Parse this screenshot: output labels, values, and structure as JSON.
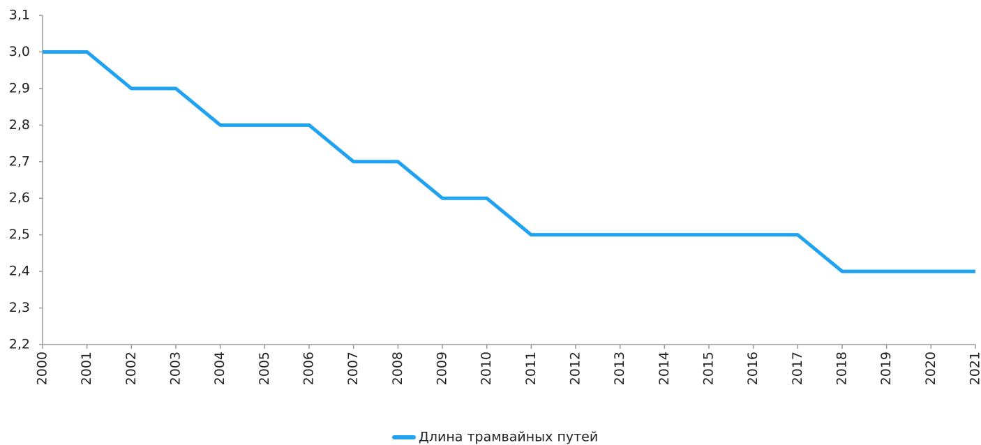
{
  "chart_data": {
    "type": "line",
    "categories": [
      "2000",
      "2001",
      "2002",
      "2003",
      "2004",
      "2005",
      "2006",
      "2007",
      "2008",
      "2009",
      "2010",
      "2011",
      "2012",
      "2013",
      "2014",
      "2015",
      "2016",
      "2017",
      "2018",
      "2019",
      "2020",
      "2021"
    ],
    "series": [
      {
        "name": "Длина трамвайных путей",
        "color": "#1fa2f0",
        "values": [
          3.0,
          3.0,
          2.9,
          2.9,
          2.8,
          2.8,
          2.8,
          2.7,
          2.7,
          2.6,
          2.6,
          2.5,
          2.5,
          2.5,
          2.5,
          2.5,
          2.5,
          2.5,
          2.4,
          2.4,
          2.4,
          2.4
        ]
      }
    ],
    "ylim": [
      2.2,
      3.1
    ],
    "yticks": [
      {
        "value": 2.2,
        "label": "2,2"
      },
      {
        "value": 2.3,
        "label": "2,3"
      },
      {
        "value": 2.4,
        "label": "2,4"
      },
      {
        "value": 2.5,
        "label": "2,5"
      },
      {
        "value": 2.6,
        "label": "2,6"
      },
      {
        "value": 2.7,
        "label": "2,7"
      },
      {
        "value": 2.8,
        "label": "2,8"
      },
      {
        "value": 2.9,
        "label": "2,9"
      },
      {
        "value": 3.0,
        "label": "3,0"
      },
      {
        "value": 3.1,
        "label": "3,1"
      }
    ],
    "grid": false,
    "legend": "bottom"
  }
}
